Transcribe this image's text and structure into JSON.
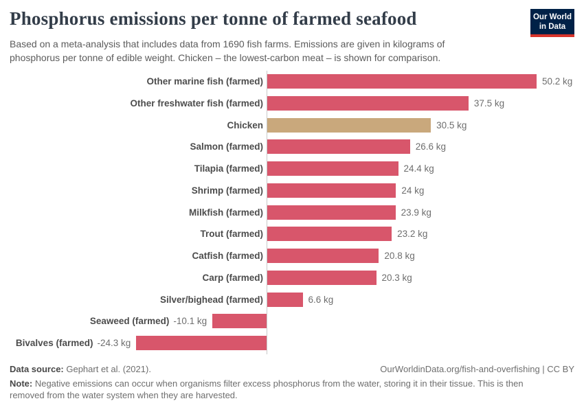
{
  "header": {
    "title": "Phosphorus emissions per tonne of farmed seafood",
    "subtitle": "Based on a meta-analysis that includes data from 1690 fish farms. Emissions are given in kilograms of phosphorus per tonne of edible weight. Chicken – the lowest-carbon meat – is shown for comparison.",
    "logo_line1": "Our World",
    "logo_line2": "in Data"
  },
  "chart_data": {
    "type": "bar",
    "orientation": "horizontal",
    "title": "Phosphorus emissions per tonne of farmed seafood",
    "unit": "kg",
    "xlim": [
      -24.3,
      50.2
    ],
    "grid": false,
    "legend": "none",
    "categories": [
      "Other marine fish (farmed)",
      "Other freshwater fish (farmed)",
      "Chicken",
      "Salmon (farmed)",
      "Tilapia (farmed)",
      "Shrimp (farmed)",
      "Milkfish (farmed)",
      "Trout (farmed)",
      "Catfish (farmed)",
      "Carp (farmed)",
      "Silver/bighead (farmed)",
      "Seaweed (farmed)",
      "Bivalves (farmed)"
    ],
    "values": [
      50.2,
      37.5,
      30.5,
      26.6,
      24.4,
      24,
      23.9,
      23.2,
      20.8,
      20.3,
      6.6,
      -10.1,
      -24.3
    ],
    "series": [
      {
        "label": "Other marine fish (farmed)",
        "value": 50.2,
        "display": "50.2 kg",
        "highlight": false
      },
      {
        "label": "Other freshwater fish (farmed)",
        "value": 37.5,
        "display": "37.5 kg",
        "highlight": false
      },
      {
        "label": "Chicken",
        "value": 30.5,
        "display": "30.5 kg",
        "highlight": true
      },
      {
        "label": "Salmon (farmed)",
        "value": 26.6,
        "display": "26.6 kg",
        "highlight": false
      },
      {
        "label": "Tilapia (farmed)",
        "value": 24.4,
        "display": "24.4 kg",
        "highlight": false
      },
      {
        "label": "Shrimp (farmed)",
        "value": 24,
        "display": "24 kg",
        "highlight": false
      },
      {
        "label": "Milkfish (farmed)",
        "value": 23.9,
        "display": "23.9 kg",
        "highlight": false
      },
      {
        "label": "Trout (farmed)",
        "value": 23.2,
        "display": "23.2 kg",
        "highlight": false
      },
      {
        "label": "Catfish (farmed)",
        "value": 20.8,
        "display": "20.8 kg",
        "highlight": false
      },
      {
        "label": "Carp (farmed)",
        "value": 20.3,
        "display": "20.3 kg",
        "highlight": false
      },
      {
        "label": "Silver/bighead (farmed)",
        "value": 6.6,
        "display": "6.6 kg",
        "highlight": false
      },
      {
        "label": "Seaweed (farmed)",
        "value": -10.1,
        "display": "-10.1 kg",
        "highlight": false
      },
      {
        "label": "Bivalves (farmed)",
        "value": -24.3,
        "display": "-24.3 kg",
        "highlight": false
      }
    ],
    "colors": {
      "bar_default": "#d8566b",
      "bar_highlight": "#c9a87c",
      "axis_line": "#c8c8c8"
    }
  },
  "footer": {
    "data_source_label": "Data source:",
    "data_source_value": " Gephart et al. (2021).",
    "link_text": "OurWorldinData.org/fish-and-overfishing | CC BY",
    "note_label": "Note:",
    "note_text": " Negative emissions can occur when organisms filter excess phosphorus from the water, storing it in their tissue. This is then removed from the water system when they are harvested."
  }
}
